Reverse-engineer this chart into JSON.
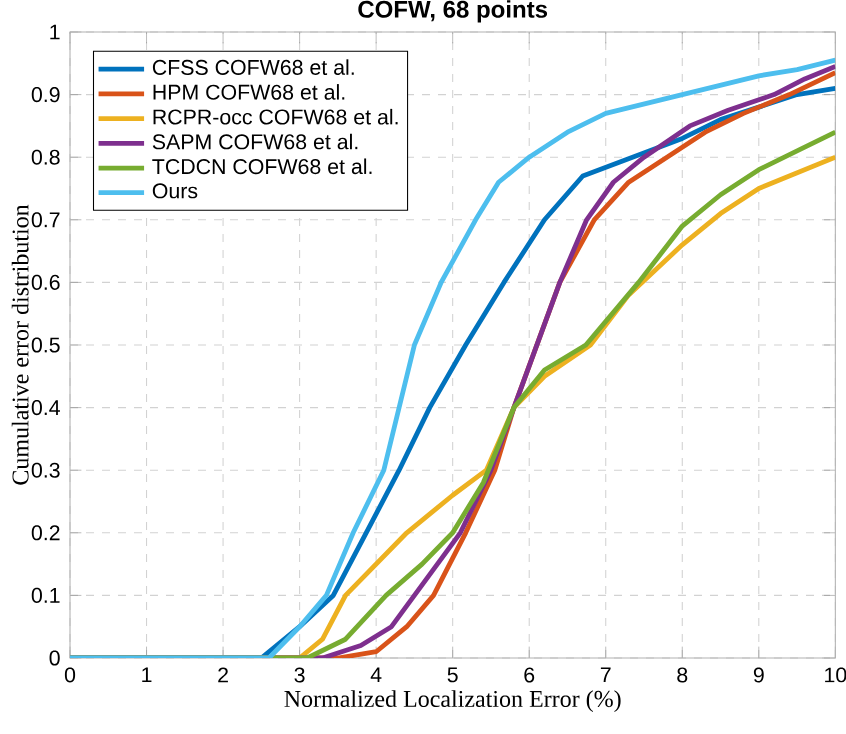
{
  "chart_data": {
    "type": "line",
    "title": "COFW, 68 points",
    "xlabel": "Normalized Localization Error (%)",
    "ylabel": "Cumulative error distribution",
    "xlim": [
      0,
      10
    ],
    "ylim": [
      0,
      1
    ],
    "xticks": [
      0,
      1,
      2,
      3,
      4,
      5,
      6,
      7,
      8,
      9,
      10
    ],
    "yticks": [
      0,
      {
        "value": 0.1,
        "label": "0.1"
      },
      {
        "value": 0.2,
        "label": "0.2"
      },
      {
        "value": 0.3,
        "label": "0.3"
      },
      {
        "value": 0.4,
        "label": "0.4"
      },
      {
        "value": 0.5,
        "label": "0.5"
      },
      {
        "value": 0.6,
        "label": "0.6"
      },
      {
        "value": 0.7,
        "label": "0.7"
      },
      {
        "value": 0.8,
        "label": "0.8"
      },
      {
        "value": 0.9,
        "label": "0.9"
      },
      1
    ],
    "grid": true,
    "legend": "top left",
    "series": [
      {
        "name": "CFSS COFW68 et al.",
        "color": "#0072bd",
        "x": [
          0,
          2.5,
          3,
          3.44,
          3.87,
          4.3,
          4.7,
          5.17,
          5.67,
          6.2,
          6.7,
          7.35,
          8,
          8.5,
          9,
          9.5,
          10
        ],
        "values": [
          0,
          0,
          0.05,
          0.1,
          0.2,
          0.3,
          0.4,
          0.5,
          0.6,
          0.7,
          0.77,
          0.8,
          0.83,
          0.86,
          0.88,
          0.9,
          0.91
        ]
      },
      {
        "name": "HPM COFW68 et al.",
        "color": "#d95319",
        "x": [
          0,
          3.5,
          4,
          4.4,
          4.75,
          5.17,
          5.55,
          5.8,
          6.1,
          6.4,
          6.85,
          7.3,
          7.8,
          8.3,
          8.8,
          9.4,
          10
        ],
        "values": [
          0,
          0,
          0.01,
          0.05,
          0.1,
          0.2,
          0.3,
          0.4,
          0.5,
          0.6,
          0.7,
          0.76,
          0.8,
          0.84,
          0.87,
          0.9,
          0.935
        ]
      },
      {
        "name": "RCPR-occ COFW68 et al.",
        "color": "#edb120",
        "x": [
          0,
          3,
          3.3,
          3.6,
          4,
          4.4,
          5,
          5.44,
          5.8,
          6.2,
          6.8,
          7.3,
          8,
          8.5,
          9,
          9.5,
          10
        ],
        "values": [
          0,
          0,
          0.03,
          0.1,
          0.15,
          0.2,
          0.26,
          0.3,
          0.4,
          0.45,
          0.5,
          0.58,
          0.66,
          0.71,
          0.75,
          0.775,
          0.8
        ]
      },
      {
        "name": "SAPM COFW68 et al.",
        "color": "#7e2f8e",
        "x": [
          0,
          3.3,
          3.8,
          4.2,
          4.5,
          5.1,
          5.5,
          5.8,
          6.1,
          6.4,
          6.75,
          7.1,
          7.5,
          8.1,
          8.6,
          9.2,
          9.6,
          10
        ],
        "values": [
          0,
          0,
          0.02,
          0.05,
          0.1,
          0.2,
          0.3,
          0.4,
          0.5,
          0.6,
          0.7,
          0.76,
          0.8,
          0.85,
          0.875,
          0.9,
          0.925,
          0.945
        ]
      },
      {
        "name": "TCDCN COFW68 et al.",
        "color": "#77ac30",
        "x": [
          0,
          3.1,
          3.6,
          4.13,
          4.6,
          5,
          5.4,
          5.8,
          6.2,
          6.74,
          7.43,
          8,
          8.5,
          9,
          9.5,
          10
        ],
        "values": [
          0,
          0,
          0.03,
          0.1,
          0.15,
          0.2,
          0.28,
          0.4,
          0.46,
          0.5,
          0.6,
          0.69,
          0.74,
          0.78,
          0.81,
          0.84
        ]
      },
      {
        "name": "Ours",
        "color": "#4dbeee",
        "x": [
          0,
          2.6,
          3,
          3.35,
          3.7,
          4.1,
          4.3,
          4.5,
          4.85,
          5.3,
          5.6,
          6,
          6.5,
          7,
          7.5,
          8,
          8.5,
          9,
          9.5,
          10
        ],
        "values": [
          0,
          0,
          0.05,
          0.1,
          0.2,
          0.3,
          0.4,
          0.5,
          0.6,
          0.7,
          0.76,
          0.8,
          0.84,
          0.87,
          0.885,
          0.9,
          0.915,
          0.93,
          0.94,
          0.955
        ]
      }
    ]
  }
}
